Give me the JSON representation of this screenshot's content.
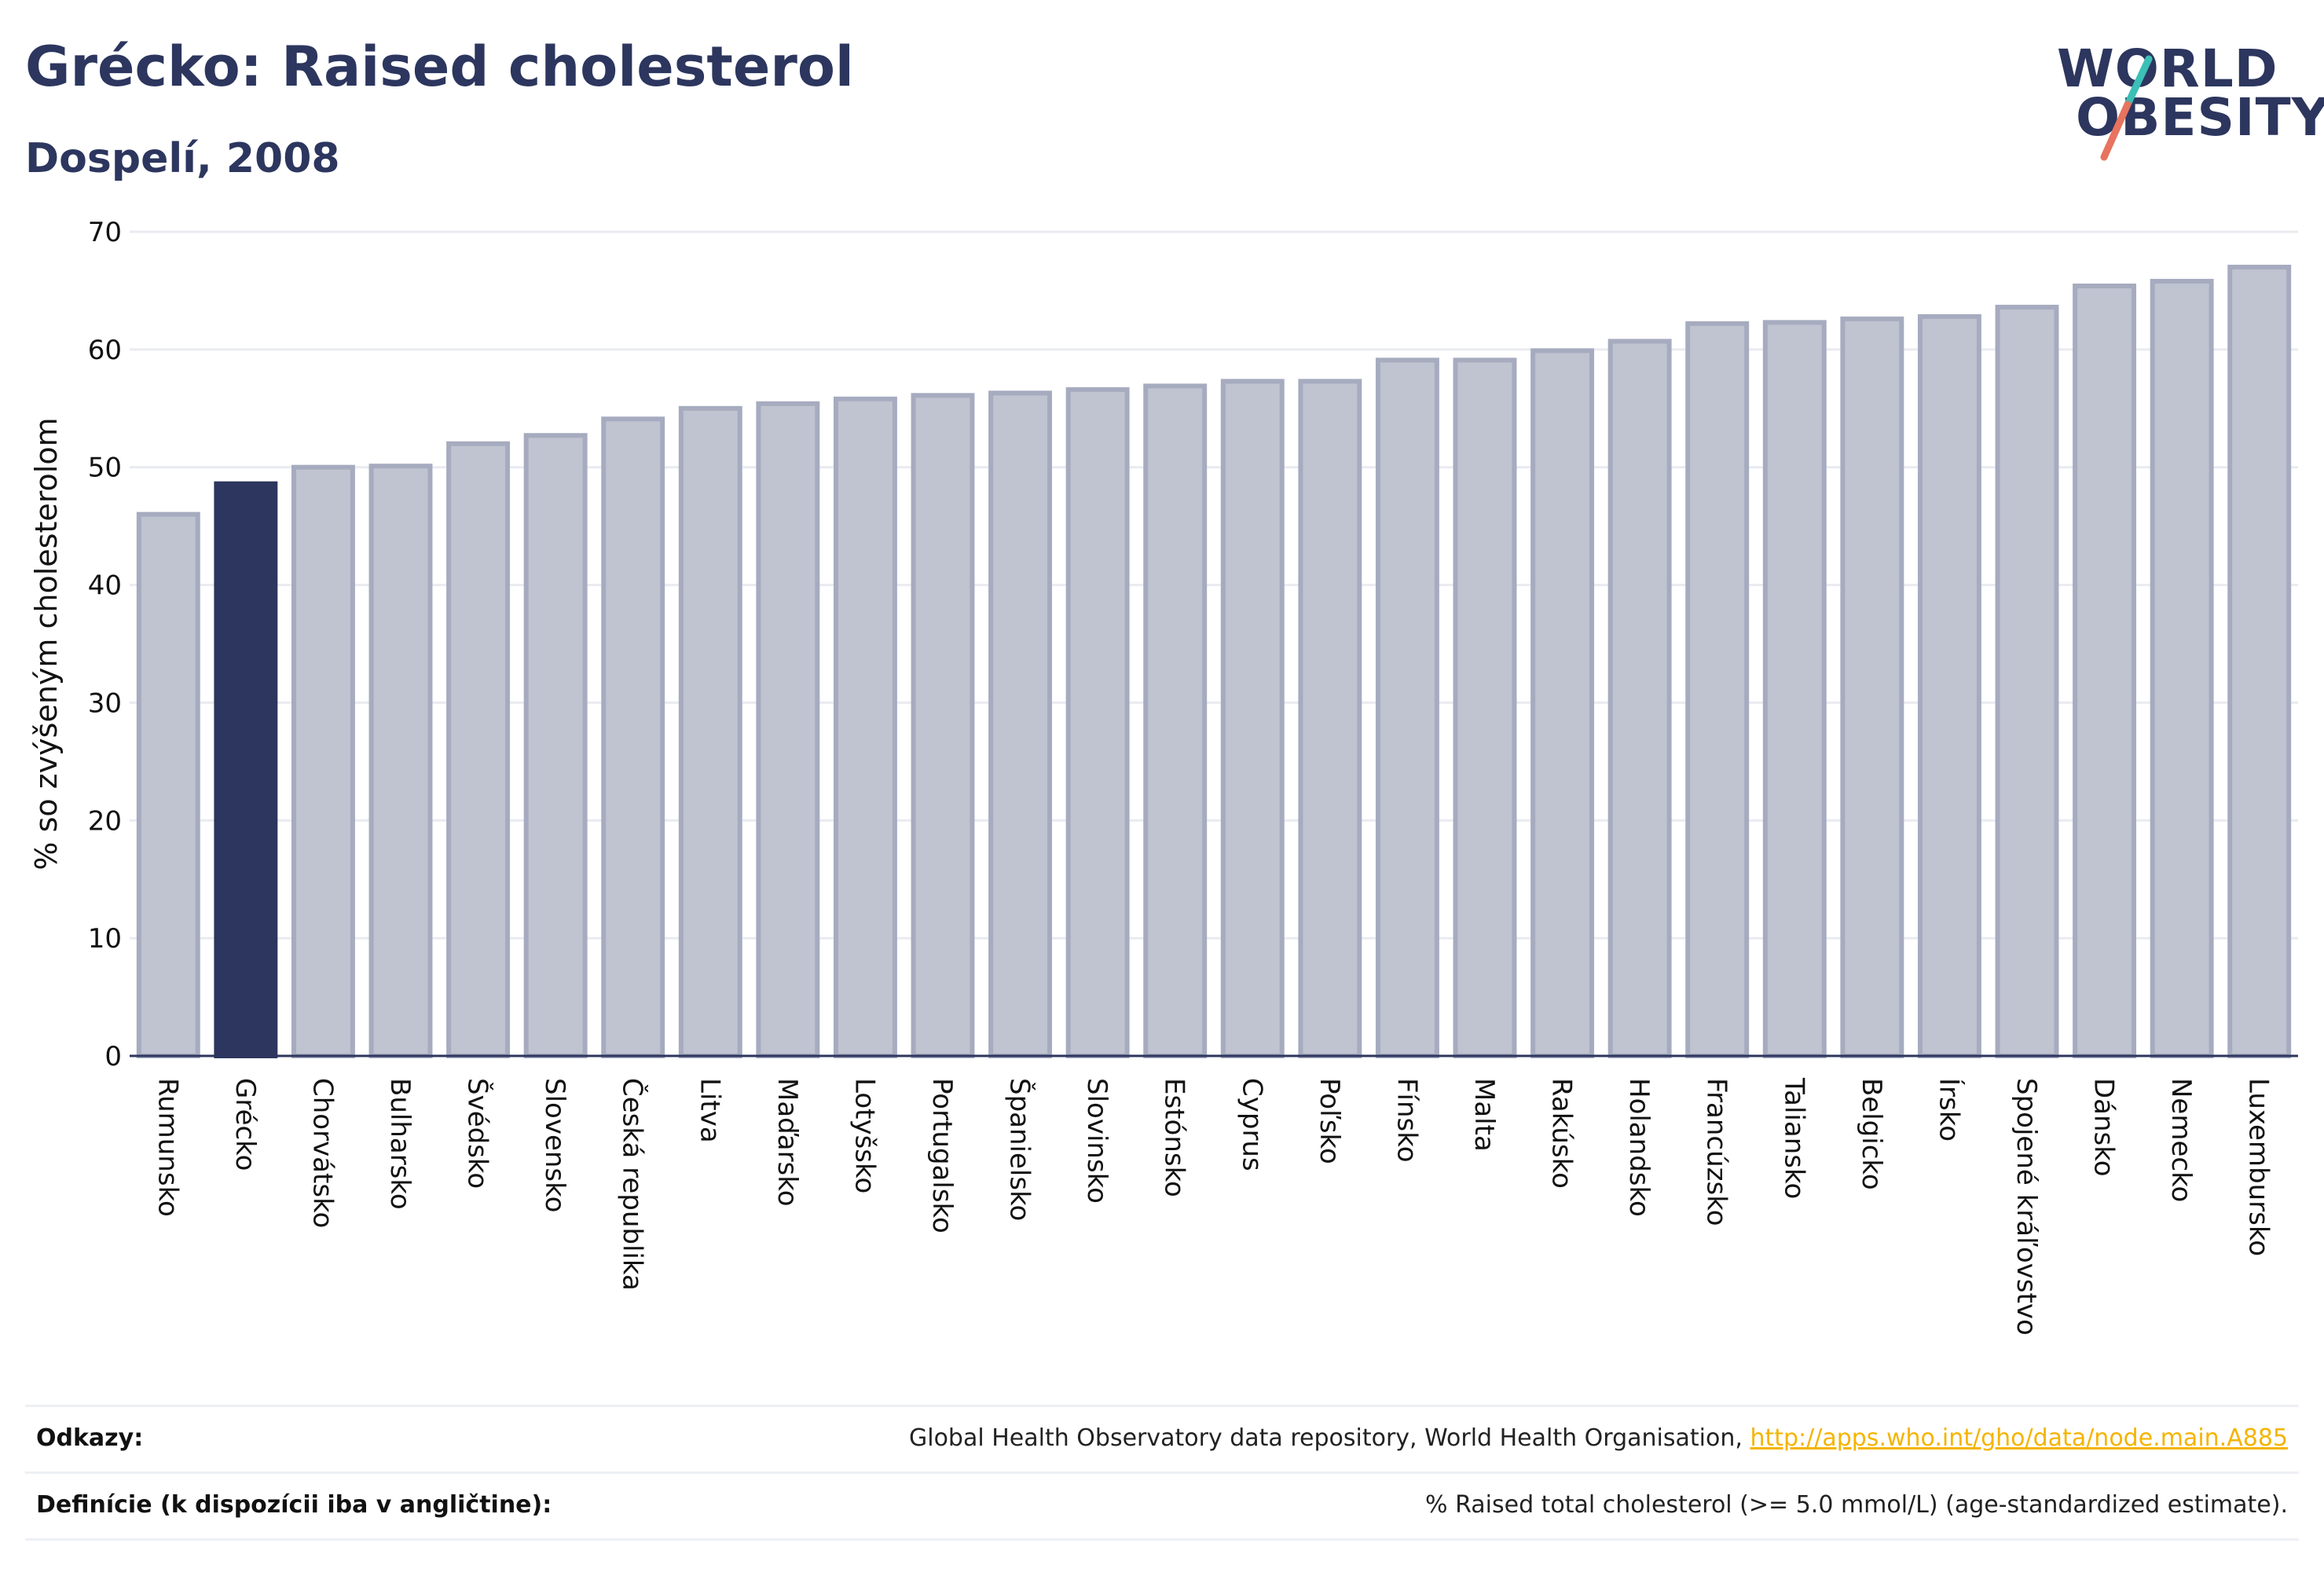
{
  "title": "Grécko: Raised cholesterol",
  "subtitle": "Dospelí, 2008",
  "logo": {
    "line1": "WORLD",
    "line2": "OBESITY"
  },
  "colors": {
    "highlight_bar": "#2c365e",
    "other_bar_fill": "#c0c3d0",
    "other_bar_stroke": "#a6abbf",
    "logo_slash_top": "#3bbfb6",
    "logo_slash_bottom": "#e8735f",
    "link": "#f4b400"
  },
  "chart_data": {
    "type": "bar",
    "ylabel": "% so zvýšeným cholesterolom",
    "xlabel": "",
    "ylim": [
      0,
      70
    ],
    "yticks": [
      0,
      10,
      20,
      30,
      40,
      50,
      60,
      70
    ],
    "grid": true,
    "highlight": "Grécko",
    "categories": [
      "Rumunsko",
      "Grécko",
      "Chorvátsko",
      "Bulharsko",
      "Švédsko",
      "Slovensko",
      "Česká republika",
      "Litva",
      "Maďarsko",
      "Lotyšsko",
      "Portugalsko",
      "Španielsko",
      "Slovinsko",
      "Estónsko",
      "Cyprus",
      "Poľsko",
      "Fínsko",
      "Malta",
      "Rakúsko",
      "Holandsko",
      "Francúzsko",
      "Taliansko",
      "Belgicko",
      "Írsko",
      "Spojené kráľovstvo",
      "Dánsko",
      "Nemecko",
      "Luxembursko"
    ],
    "values": [
      46.0,
      48.6,
      50.0,
      50.1,
      52.0,
      52.7,
      54.1,
      55.0,
      55.4,
      55.8,
      56.1,
      56.3,
      56.6,
      56.9,
      57.3,
      57.3,
      59.1,
      59.1,
      59.9,
      60.7,
      62.2,
      62.3,
      62.6,
      62.8,
      63.6,
      65.4,
      65.8,
      67.0
    ]
  },
  "footer": {
    "references_label": "Odkazy:",
    "references_text": "Global Health Observatory data repository, World Health Organisation,",
    "references_link": "http://apps.who.int/gho/data/node.main.A885",
    "definitions_label": "Definície (k dispozícii iba v angličtine):",
    "definitions_text": "% Raised total cholesterol (>= 5.0 mmol/L) (age-standardized estimate)."
  }
}
